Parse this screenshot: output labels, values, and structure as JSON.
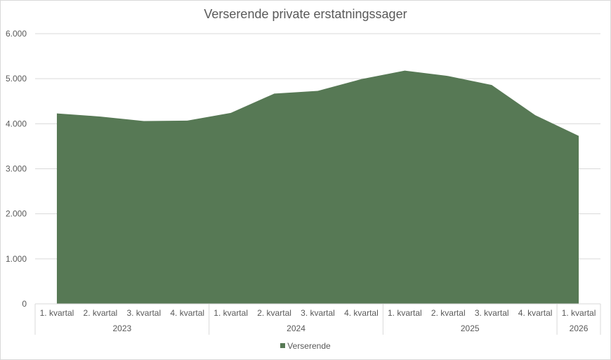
{
  "chart_data": {
    "type": "area",
    "title": "Verserende private erstatningssager",
    "xlabel": "",
    "ylabel": "",
    "ylim": [
      0,
      6000
    ],
    "yticks": [
      0,
      1000,
      2000,
      3000,
      4000,
      5000,
      6000
    ],
    "ytick_labels": [
      "0",
      "1.000",
      "2.000",
      "3.000",
      "4.000",
      "5.000",
      "6.000"
    ],
    "categories": [
      "1. kvartal",
      "2. kvartal",
      "3. kvartal",
      "4. kvartal",
      "1. kvartal",
      "2. kvartal",
      "3. kvartal",
      "4. kvartal",
      "1. kvartal",
      "2. kvartal",
      "3. kvartal",
      "4. kvartal",
      "1. kvartal"
    ],
    "groups": [
      {
        "label": "2023",
        "count": 4
      },
      {
        "label": "2024",
        "count": 4
      },
      {
        "label": "2025",
        "count": 4
      },
      {
        "label": "2026",
        "count": 1
      }
    ],
    "series": [
      {
        "name": "Verserende",
        "color": "#577955",
        "values": [
          4230,
          4160,
          4060,
          4070,
          4240,
          4670,
          4730,
          4990,
          5180,
          5060,
          4860,
          4190,
          3730
        ]
      }
    ],
    "grid": true,
    "legend": "bottom"
  }
}
